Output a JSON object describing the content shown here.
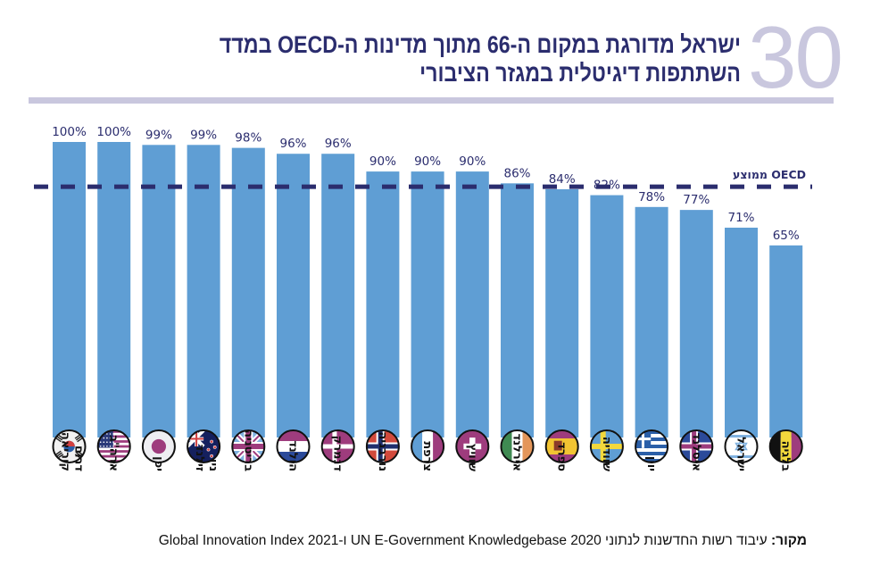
{
  "header": {
    "figure_number": "30",
    "title": "ישראל מדורגת במקום ה-66 מתוך מדינות ה-OECD במדד השתתפות דיגיטלית במגזר הציבורי"
  },
  "footer": {
    "source_label": "מקור:",
    "source_text": "עיבוד רשות החדשנות לנתוני UN E-Government Knowledgebase 2020 ו-Global Innovation Index 2021"
  },
  "colors": {
    "bar": "#5f9ed4",
    "reference_line": "#2b2d6e",
    "text": "#2b2d6e",
    "accent_light": "#c9c7de"
  },
  "chart_data": {
    "type": "bar",
    "title": "ישראל מדורגת במקום ה-66 מתוך מדינות ה-OECD במדד השתתפות דיגיטלית במגזר הציבורי",
    "xlabel": "",
    "ylabel": "",
    "ylim": [
      0,
      100
    ],
    "grid": false,
    "value_suffix": "%",
    "categories": [
      "דרום קוריאה",
      "ארה\"ב",
      "יפן",
      "ניו זילנד",
      "בריטניה",
      "הולנד",
      "דנמרק",
      "נורבגיה",
      "צרפת",
      "שוויץ",
      "אירלנד",
      "ספרד",
      "שוודיה",
      "יוון",
      "איסלנד",
      "ישראל",
      "בלגיה"
    ],
    "flags": [
      "south-korea-flag-icon",
      "usa-flag-icon",
      "japan-flag-icon",
      "new-zealand-flag-icon",
      "uk-flag-icon",
      "netherlands-flag-icon",
      "denmark-flag-icon",
      "norway-flag-icon",
      "france-flag-icon",
      "switzerland-flag-icon",
      "ireland-flag-icon",
      "spain-flag-icon",
      "sweden-flag-icon",
      "greece-flag-icon",
      "iceland-flag-icon",
      "israel-flag-icon",
      "belgium-flag-icon"
    ],
    "values": [
      100,
      100,
      99,
      99,
      98,
      96,
      96,
      90,
      90,
      90,
      86,
      84,
      82,
      78,
      77,
      71,
      65
    ],
    "data_labels": [
      "100%",
      "100%",
      "99%",
      "99%",
      "98%",
      "96%",
      "96%",
      "90%",
      "90%",
      "90%",
      "86%",
      "84%",
      "82%",
      "78%",
      "77%",
      "71%",
      "65%"
    ],
    "reference_lines": [
      {
        "label": "ממוצע OECD",
        "value": 85,
        "style": "dashed"
      }
    ]
  }
}
